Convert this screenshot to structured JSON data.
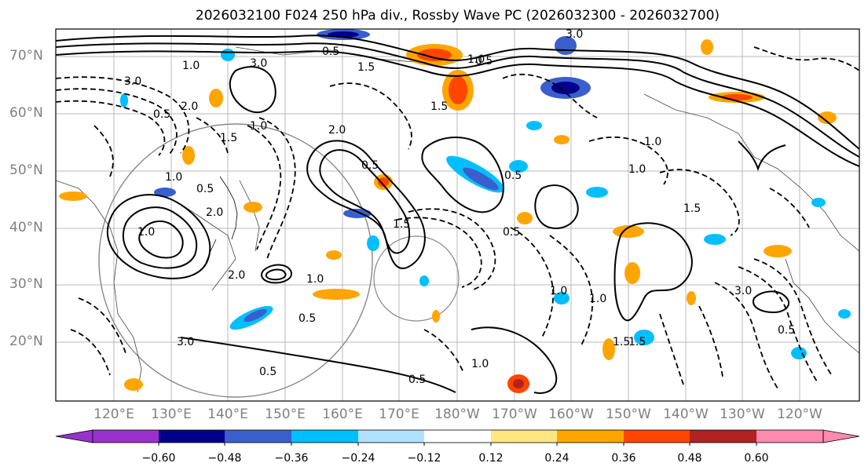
{
  "title": "2026032100 F024 250 hPa div., Rossby Wave PC (2026032300 - 2026032700)",
  "latitude_labels": [
    "70°N",
    "60°N",
    "50°N",
    "40°N",
    "30°N",
    "20°N"
  ],
  "longitude_labels": [
    "120°E",
    "130°E",
    "140°E",
    "150°E",
    "160°E",
    "170°E",
    "180°W",
    "170°W",
    "160°W",
    "150°W",
    "140°W",
    "130°W",
    "120°W"
  ],
  "colorbar": {
    "ticks": [
      "−0.60",
      "−0.48",
      "−0.36",
      "−0.24",
      "−0.12",
      "0.12",
      "0.24",
      "0.36",
      "0.48",
      "0.60"
    ],
    "colors": [
      "#9932cc",
      "#00008b",
      "#3a5fcd",
      "#00bfff",
      "#b0e2ff",
      "#ffffff",
      "#ffe680",
      "#ffa500",
      "#ff4500",
      "#b22222",
      "#ff8ab0"
    ]
  },
  "contour_labels": [
    "3.0",
    "2.0",
    "1.0",
    "0.5",
    "1.0",
    "1.5",
    "0.5",
    "1.0",
    "2.0",
    "1.5",
    "3.0",
    "0.5",
    "2.0",
    "1.5",
    "1.0",
    "1.0",
    "0.5",
    "1.5",
    "0.5",
    "1.0",
    "0.5",
    "1.0",
    "3.0",
    "0.5",
    "1.0",
    "0.5",
    "1.0",
    "1.5",
    "1.5",
    "0.5",
    "1.0",
    "1.5",
    "3.0",
    "0.5",
    "3.0",
    "2.0",
    "0.5",
    "1.0"
  ]
}
